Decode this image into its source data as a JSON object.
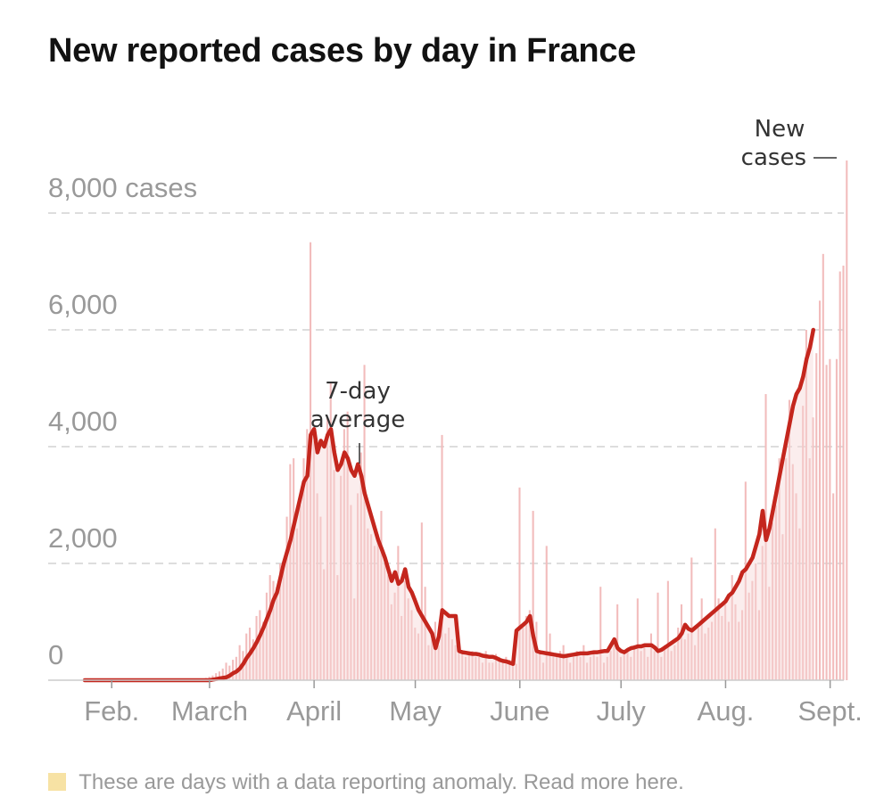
{
  "title": "New reported cases by day in France",
  "colors": {
    "bar": "#f2bcbc",
    "average_line": "#c4261d",
    "average_fill": "#f6d8d8",
    "grid": "#dddddd",
    "axis_text": "#999999",
    "anomaly": "#f7e2a4"
  },
  "annotations": {
    "avg_line1": "7-day",
    "avg_line2": "average",
    "new_line1": "New",
    "new_line2": "cases"
  },
  "footnote": "These are days with a data reporting anomaly. Read more here.",
  "chart_data": {
    "type": "bar",
    "title": "New reported cases by day in France",
    "x_start": "2020-01-24",
    "x_end": "2020-09-04",
    "ylim": [
      0,
      9000
    ],
    "yticks": [
      {
        "value": 0,
        "label": "0"
      },
      {
        "value": 2000,
        "label": "2,000"
      },
      {
        "value": 4000,
        "label": "4,000"
      },
      {
        "value": 6000,
        "label": "6,000"
      },
      {
        "value": 8000,
        "label": "8,000 cases"
      }
    ],
    "xticks": [
      {
        "date": "2020-02-01",
        "label": "Feb."
      },
      {
        "date": "2020-03-01",
        "label": "March"
      },
      {
        "date": "2020-04-01",
        "label": "April"
      },
      {
        "date": "2020-05-01",
        "label": "May"
      },
      {
        "date": "2020-06-01",
        "label": "June"
      },
      {
        "date": "2020-07-01",
        "label": "July"
      },
      {
        "date": "2020-08-01",
        "label": "Aug."
      },
      {
        "date": "2020-09-01",
        "label": "Sept."
      }
    ],
    "grid": true,
    "new_cases_series": {
      "name": "New cases",
      "start_date": "2020-02-26",
      "values": [
        10,
        20,
        30,
        40,
        60,
        80,
        120,
        150,
        200,
        300,
        250,
        350,
        400,
        600,
        500,
        800,
        900,
        700,
        1100,
        1200,
        1000,
        1500,
        1800,
        1700,
        1600,
        2000,
        1900,
        2800,
        3700,
        3800,
        2600,
        3000,
        3800,
        4300,
        7500,
        4100,
        3200,
        2800,
        1900,
        4500,
        5100,
        3600,
        1800,
        3500,
        4300,
        4600,
        3000,
        1400,
        3200,
        3900,
        5400,
        2600,
        2500,
        2300,
        2500,
        2900,
        2000,
        1800,
        1300,
        1500,
        2300,
        1100,
        1700,
        1400,
        1200,
        900,
        800,
        2700,
        1600,
        600,
        700,
        1000,
        600,
        4200,
        800,
        900,
        700,
        600,
        700,
        500,
        400,
        450,
        500,
        400,
        400,
        300,
        500,
        300,
        300,
        450,
        400,
        300,
        400,
        350,
        300,
        280,
        3300,
        900,
        1100,
        1200,
        2900,
        1000,
        500,
        300,
        2300,
        800,
        400,
        400,
        500,
        600,
        400,
        300,
        400,
        500,
        400,
        600,
        300,
        400,
        500,
        400,
        1600,
        300,
        400,
        500,
        600,
        1300,
        400,
        500,
        500,
        400,
        600,
        1400,
        500,
        600,
        400,
        800,
        500,
        1500,
        400,
        600,
        1700,
        500,
        600,
        900,
        1300,
        700,
        800,
        2100,
        600,
        900,
        1400,
        800,
        900,
        1000,
        2600,
        1400,
        1100,
        1300,
        1000,
        1800,
        1300,
        1000,
        1200,
        3400,
        1500,
        1700,
        2000,
        1200,
        2300,
        4900,
        1600,
        2700,
        3000,
        3800,
        2500,
        3800,
        4800,
        3700,
        3200,
        2600,
        4700,
        6000,
        3800,
        4500,
        5600,
        6500,
        7300,
        5400,
        5500,
        3200,
        5500,
        7000,
        7100,
        8900
      ]
    },
    "average_series": {
      "name": "7-day average",
      "start_date": "2020-01-24",
      "values": [
        0,
        0,
        0,
        0,
        0,
        0,
        0,
        0,
        0,
        0,
        0,
        0,
        0,
        0,
        0,
        0,
        0,
        0,
        0,
        0,
        0,
        0,
        0,
        0,
        0,
        0,
        0,
        0,
        0,
        0,
        0,
        0,
        0,
        0,
        0,
        0,
        0,
        0,
        10,
        20,
        30,
        40,
        50,
        80,
        120,
        150,
        200,
        280,
        380,
        460,
        550,
        650,
        770,
        900,
        1050,
        1200,
        1380,
        1500,
        1750,
        2000,
        2200,
        2400,
        2650,
        2900,
        3150,
        3400,
        3500,
        4200,
        4300,
        3900,
        4100,
        4000,
        4200,
        4300,
        3900,
        3600,
        3700,
        3900,
        3800,
        3600,
        3500,
        3700,
        3500,
        3200,
        3000,
        2800,
        2600,
        2400,
        2250,
        2100,
        1900,
        1700,
        1850,
        1650,
        1700,
        1900,
        1600,
        1500,
        1350,
        1200,
        1100,
        1000,
        900,
        800,
        550,
        750,
        1200,
        1150,
        1100,
        1100,
        1100,
        500,
        480,
        470,
        460,
        450,
        450,
        440,
        420,
        410,
        400,
        400,
        380,
        350,
        330,
        320,
        300,
        280,
        850,
        900,
        950,
        1000,
        1100,
        750,
        500,
        480,
        470,
        460,
        450,
        440,
        430,
        420,
        410,
        420,
        430,
        440,
        450,
        460,
        460,
        460,
        470,
        480,
        480,
        490,
        500,
        500,
        600,
        700,
        550,
        500,
        480,
        520,
        550,
        560,
        580,
        580,
        600,
        600,
        600,
        560,
        500,
        520,
        560,
        600,
        640,
        680,
        720,
        800,
        950,
        880,
        850,
        900,
        950,
        1000,
        1050,
        1100,
        1150,
        1200,
        1250,
        1300,
        1350,
        1450,
        1500,
        1600,
        1700,
        1850,
        1900,
        2000,
        2100,
        2300,
        2500,
        2900,
        2400,
        2600,
        2900,
        3200,
        3500,
        3800,
        4100,
        4400,
        4700,
        4900,
        5000,
        5200,
        5500,
        5700,
        6000
      ]
    }
  }
}
